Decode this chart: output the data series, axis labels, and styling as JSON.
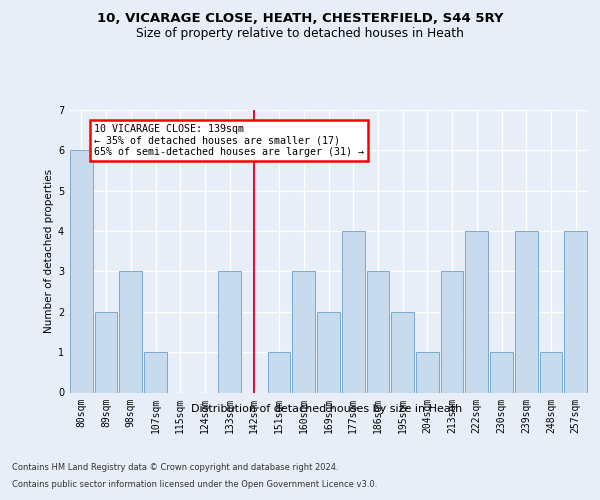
{
  "title_line1": "10, VICARAGE CLOSE, HEATH, CHESTERFIELD, S44 5RY",
  "title_line2": "Size of property relative to detached houses in Heath",
  "xlabel": "Distribution of detached houses by size in Heath",
  "ylabel": "Number of detached properties",
  "categories": [
    "80sqm",
    "89sqm",
    "98sqm",
    "107sqm",
    "115sqm",
    "124sqm",
    "133sqm",
    "142sqm",
    "151sqm",
    "160sqm",
    "169sqm",
    "177sqm",
    "186sqm",
    "195sqm",
    "204sqm",
    "213sqm",
    "222sqm",
    "230sqm",
    "239sqm",
    "248sqm",
    "257sqm"
  ],
  "values": [
    6,
    2,
    3,
    1,
    0,
    0,
    3,
    0,
    1,
    3,
    2,
    4,
    3,
    2,
    1,
    3,
    4,
    1,
    4,
    1,
    4
  ],
  "bar_color": "#c8daee",
  "bar_edge_color": "#7aaad0",
  "reference_bin_index": 7,
  "annotation_text": "10 VICARAGE CLOSE: 139sqm\n← 35% of detached houses are smaller (17)\n65% of semi-detached houses are larger (31) →",
  "ylim_max": 7,
  "yticks": [
    0,
    1,
    2,
    3,
    4,
    5,
    6,
    7
  ],
  "footer_line1": "Contains HM Land Registry data © Crown copyright and database right 2024.",
  "footer_line2": "Contains public sector information licensed under the Open Government Licence v3.0.",
  "bg_color": "#e8eef8",
  "title1_fontsize": 9.5,
  "title2_fontsize": 8.8,
  "xlabel_fontsize": 8.0,
  "ylabel_fontsize": 7.5,
  "tick_fontsize": 7.0,
  "annot_fontsize": 7.2,
  "footer_fontsize": 6.0
}
